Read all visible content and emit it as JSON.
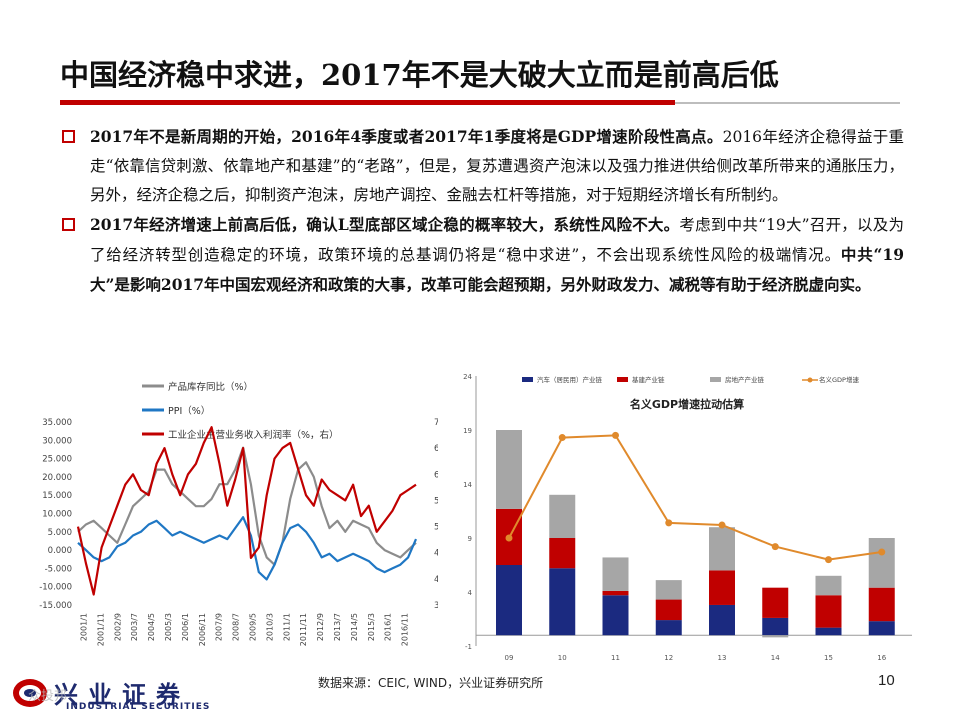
{
  "slide": {
    "title": "中国经济稳中求进，2017年不是大破大立而是前高后低",
    "page_number": "10",
    "source": "数据来源：CEIC, WIND，兴业证券研究所",
    "logo_cn": "兴业证券",
    "logo_en": "INDUSTRIAL SECURITIES",
    "watermark": "众投邦",
    "accent_color": "#c00000"
  },
  "bullets": [
    {
      "runs": [
        {
          "text": "2017年不是新周期的开始，2016年4季度或者2017年1季度将是GDP增速阶段性高点。",
          "bold": true
        },
        {
          "text": "2016年经济企稳得益于重走“依靠信贷刺激、依靠地产和基建”的“老路”，但是，复苏遭遇资产泡沫以及强力推进供给侧改革所带来的通胀压力，另外，经济企稳之后，抑制资产泡沫，房地产调控、金融去杠杆等措施，对于短期经济增长有所制约。",
          "bold": false
        }
      ]
    },
    {
      "runs": [
        {
          "text": "2017年经济增速上前高后低，确认L型底部区域企稳的概率较大，系统性风险不大。",
          "bold": true
        },
        {
          "text": "考虑到中共“19大”召开，以及为了给经济转型创造稳定的环境，政策环境的总基调仍将是“稳中求进”，不会出现系统性风险的极端情况。",
          "bold": false
        },
        {
          "text": "中共“19大”是影响2017年中国宏观经济和政策的大事，改革可能会超预期，另外财政发力、减税等有助于经济脱虚向实。",
          "bold": true
        }
      ]
    }
  ],
  "chart_data": [
    {
      "type": "line",
      "title": "",
      "legend": [
        "产品库存同比（%）",
        "PPI（%）",
        "工业企业主营业务收入利润率（%，右）"
      ],
      "colors": [
        "#8c8c8c",
        "#1f77c4",
        "#c00000"
      ],
      "left_ticks": [
        "35.000",
        "30.000",
        "25.000",
        "20.000",
        "15.000",
        "10.000",
        "5.000",
        "0.000",
        "-5.000",
        "-10.000",
        "-15.000"
      ],
      "right_ticks": [
        "7",
        "6.5",
        "6",
        "5.5",
        "5",
        "4.5",
        "4",
        "3.5"
      ],
      "ylim_left": [
        -15,
        35
      ],
      "ylim_right": [
        3.5,
        7
      ],
      "x_labels": [
        "2001/1",
        "2001/11",
        "2002/9",
        "2003/7",
        "2004/5",
        "2005/3",
        "2006/1",
        "2006/11",
        "2007/9",
        "2008/7",
        "2009/5",
        "2010/3",
        "2011/1",
        "2011/11",
        "2012/9",
        "2013/7",
        "2014/5",
        "2015/3",
        "2016/1",
        "2016/11"
      ],
      "series": [
        {
          "name": "产品库存同比（%）",
          "axis": "left",
          "values": [
            5,
            7,
            8,
            6,
            4,
            2,
            7,
            12,
            14,
            16,
            22,
            22,
            18,
            16,
            14,
            12,
            12,
            14,
            18,
            18,
            22,
            28,
            18,
            4,
            -2,
            -4,
            2,
            14,
            22,
            24,
            20,
            12,
            6,
            8,
            5,
            8,
            7,
            6,
            2,
            0,
            -1,
            -2,
            0,
            2
          ]
        },
        {
          "name": "PPI（%）",
          "axis": "left",
          "values": [
            2,
            0,
            -2,
            -3,
            -2,
            1,
            2,
            4,
            5,
            7,
            8,
            6,
            4,
            5,
            4,
            3,
            2,
            3,
            4,
            3,
            6,
            9,
            4,
            -6,
            -8,
            -4,
            2,
            6,
            7,
            5,
            2,
            -2,
            -1,
            -3,
            -2,
            -1,
            -2,
            -3,
            -5,
            -6,
            -5,
            -4,
            -2,
            3
          ]
        },
        {
          "name": "工业企业主营业务收入利润率（%，右）",
          "axis": "right",
          "values": [
            5,
            4.3,
            3.7,
            4.6,
            5.0,
            5.4,
            5.8,
            6.0,
            5.7,
            5.6,
            6.2,
            6.5,
            6.0,
            5.6,
            6.0,
            6.2,
            6.6,
            6.9,
            6.2,
            5.4,
            5.9,
            6.5,
            4.4,
            4.6,
            5.6,
            6.3,
            6.5,
            6.6,
            6.1,
            5.6,
            5.4,
            5.9,
            5.7,
            5.6,
            5.5,
            5.8,
            5.2,
            5.4,
            4.9,
            5.1,
            5.3,
            5.6,
            5.7,
            5.8
          ]
        }
      ]
    },
    {
      "type": "bar",
      "title": "名义GDP增速拉动估算",
      "categories": [
        "09",
        "10",
        "11",
        "12",
        "13",
        "14",
        "15",
        "16"
      ],
      "legend": [
        "汽车（居民用）产业链",
        "基建产业链",
        "房地产产业链",
        "名义GDP增速"
      ],
      "colors": [
        "#1b2a80",
        "#c00000",
        "#a6a6a6",
        "#e08a2c"
      ],
      "y_ticks": [
        "24",
        "19",
        "14",
        "9",
        "4",
        "-1"
      ],
      "ylim": [
        -1,
        24
      ],
      "series": [
        {
          "name": "汽车（居民用）产业链",
          "values": [
            6.5,
            6.2,
            3.7,
            1.4,
            2.8,
            1.6,
            0.7,
            1.3
          ]
        },
        {
          "name": "基建产业链",
          "values": [
            5.2,
            2.8,
            0.4,
            1.9,
            3.2,
            2.8,
            3.0,
            3.1
          ]
        },
        {
          "name": "房地产产业链",
          "values": [
            7.3,
            4.0,
            3.1,
            1.8,
            4.0,
            -0.2,
            1.8,
            4.6
          ]
        },
        {
          "name": "名义GDP增速",
          "type": "line",
          "values": [
            9.0,
            18.3,
            18.5,
            10.4,
            10.2,
            8.2,
            7.0,
            7.7
          ]
        }
      ]
    }
  ]
}
